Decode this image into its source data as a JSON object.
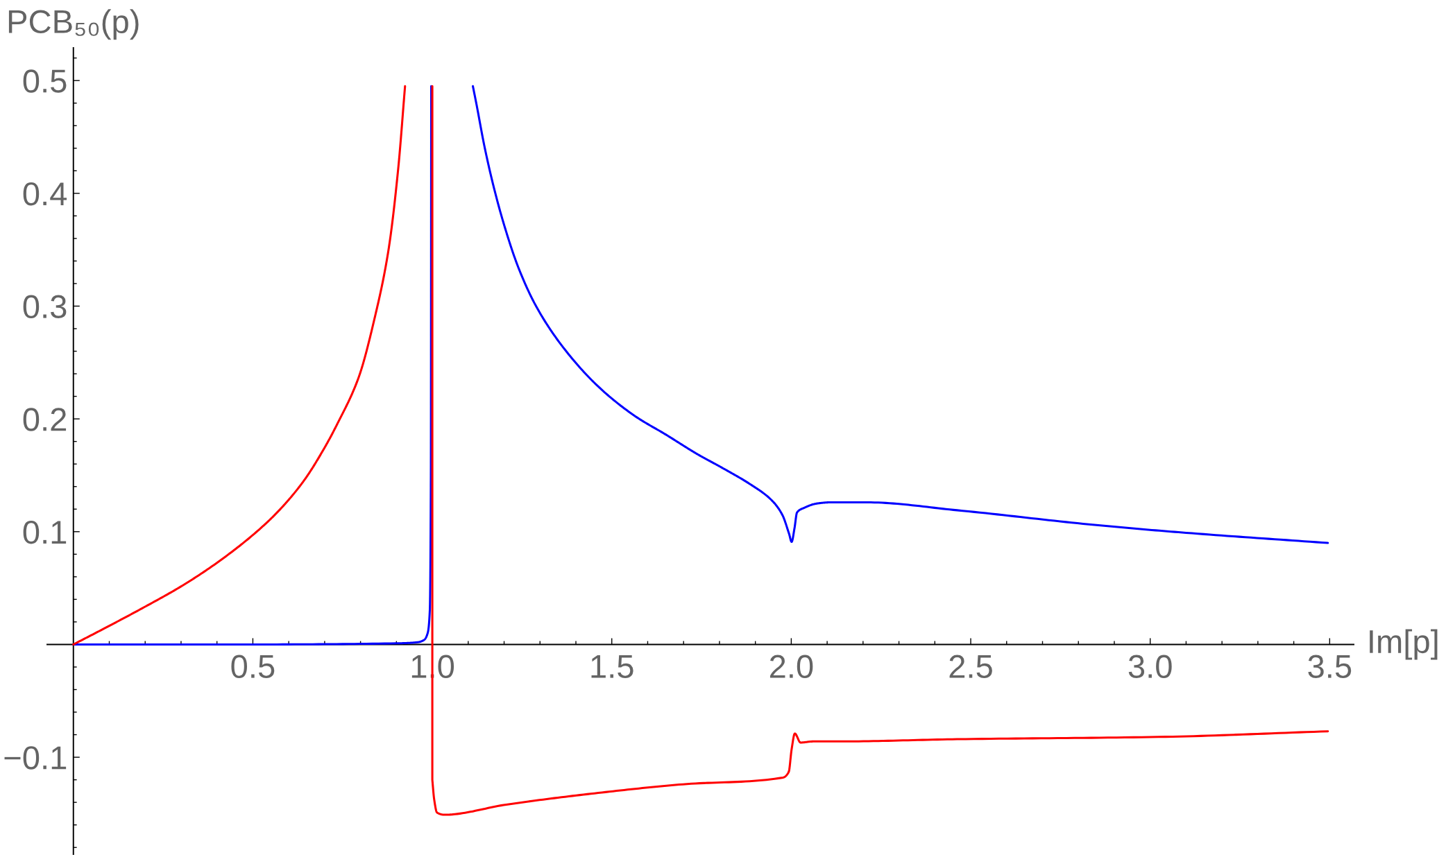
{
  "chart_data": {
    "type": "line",
    "xlabel": "Im[p]",
    "ylabel": "PCB₅₀(p)",
    "xlim": [
      -0.073,
      3.567
    ],
    "ylim": [
      -0.186,
      0.529
    ],
    "xticks": [
      0.5,
      {
        "value": 1,
        "label": "1.0"
      },
      1.5,
      {
        "value": 2,
        "label": "2.0"
      },
      2.5,
      {
        "value": 3,
        "label": "3.0"
      },
      3.5,
      {
        "value": 0.1,
        "label": null
      },
      {
        "value": 0.2,
        "label": null
      },
      {
        "value": 0.3,
        "label": null
      },
      {
        "value": 0.4,
        "label": null
      },
      {
        "value": 0.6,
        "label": null
      },
      {
        "value": 0.7,
        "label": null
      },
      {
        "value": 0.8,
        "label": null
      },
      {
        "value": 0.9,
        "label": null
      },
      {
        "value": 1.1,
        "label": null
      },
      {
        "value": 1.2,
        "label": null
      },
      {
        "value": 1.3,
        "label": null
      },
      {
        "value": 1.4,
        "label": null
      },
      {
        "value": 1.6,
        "label": null
      },
      {
        "value": 1.7,
        "label": null
      },
      {
        "value": 1.8,
        "label": null
      },
      {
        "value": 1.9,
        "label": null
      },
      {
        "value": 2.1,
        "label": null
      },
      {
        "value": 2.2,
        "label": null
      },
      {
        "value": 2.3,
        "label": null
      },
      {
        "value": 2.4,
        "label": null
      },
      {
        "value": 2.6,
        "label": null
      },
      {
        "value": 2.7,
        "label": null
      },
      {
        "value": 2.8,
        "label": null
      },
      {
        "value": 2.9,
        "label": null
      },
      {
        "value": 3.1,
        "label": null
      },
      {
        "value": 3.2,
        "label": null
      },
      {
        "value": 3.3,
        "label": null
      },
      {
        "value": 3.4,
        "label": null
      }
    ],
    "yticks": [
      {
        "value": -0.1,
        "label": "−0.1"
      },
      0.1,
      0.2,
      0.3,
      0.4,
      0.5,
      {
        "value": -0.18,
        "label": null
      },
      {
        "value": -0.16,
        "label": null
      },
      {
        "value": -0.14,
        "label": null
      },
      {
        "value": -0.12,
        "label": null
      },
      {
        "value": -0.08,
        "label": null
      },
      {
        "value": -0.06,
        "label": null
      },
      {
        "value": -0.04,
        "label": null
      },
      {
        "value": -0.02,
        "label": null
      },
      {
        "value": 0.02,
        "label": null
      },
      {
        "value": 0.04,
        "label": null
      },
      {
        "value": 0.06,
        "label": null
      },
      {
        "value": 0.08,
        "label": null
      },
      {
        "value": 0.12,
        "label": null
      },
      {
        "value": 0.14,
        "label": null
      },
      {
        "value": 0.16,
        "label": null
      },
      {
        "value": 0.18,
        "label": null
      },
      {
        "value": 0.22,
        "label": null
      },
      {
        "value": 0.24,
        "label": null
      },
      {
        "value": 0.26,
        "label": null
      },
      {
        "value": 0.28,
        "label": null
      },
      {
        "value": 0.32,
        "label": null
      },
      {
        "value": 0.34,
        "label": null
      },
      {
        "value": 0.36,
        "label": null
      },
      {
        "value": 0.38,
        "label": null
      },
      {
        "value": 0.42,
        "label": null
      },
      {
        "value": 0.44,
        "label": null
      },
      {
        "value": 0.46,
        "label": null
      },
      {
        "value": 0.48,
        "label": null
      },
      {
        "value": 0.52,
        "label": null
      }
    ],
    "grid": false,
    "series": [
      {
        "color": "#0000ff",
        "x": [
          0,
          0.5,
          0.9,
          0.96,
          0.977,
          0.987,
          0.993,
          0.996,
          0.997,
          1.05,
          1.113,
          1.123,
          1.145,
          1.17,
          1.2,
          1.24,
          1.289,
          1.368,
          1.468,
          1.567,
          1.651,
          1.737,
          1.811,
          1.886,
          1.945,
          1.975,
          1.994,
          2.001,
          2.009,
          2.016,
          2.035,
          2.072,
          2.109,
          2.211,
          2.462,
          2.845,
          3.1,
          3.495
        ],
        "values": [
          0,
          0,
          0.001,
          0.002,
          0.004,
          0.01,
          0.03,
          0.15,
          0.495,
          null,
          0.495,
          0.479,
          0.442,
          0.407,
          0.372,
          0.334,
          0.3,
          0.262,
          0.227,
          0.202,
          0.186,
          0.169,
          0.156,
          0.142,
          0.128,
          0.115,
          0.098,
          0.091,
          0.103,
          0.117,
          0.121,
          0.125,
          0.126,
          0.126,
          0.119,
          0.106,
          0.099,
          0.09
        ]
      },
      {
        "color": "#ff0000",
        "x": [
          0,
          0.085,
          0.197,
          0.308,
          0.42,
          0.532,
          0.588,
          0.644,
          0.699,
          0.736,
          0.795,
          0.839,
          0.878,
          0.905,
          0.924,
          0.96,
          1.0,
          1.0,
          1.005,
          1.013,
          1.034,
          1.206,
          1.452,
          1.698,
          1.977,
          1.993,
          2.001,
          2.01,
          2.026,
          2.06,
          2.133,
          2.462,
          3.023,
          3.495
        ],
        "values": [
          0,
          0.014,
          0.033,
          0.053,
          0.077,
          0.106,
          0.124,
          0.146,
          0.174,
          0.196,
          0.237,
          0.289,
          0.35,
          0.422,
          0.495,
          null,
          0.495,
          -0.12,
          -0.137,
          -0.149,
          -0.151,
          -0.142,
          -0.132,
          -0.124,
          -0.118,
          -0.113,
          -0.093,
          -0.079,
          -0.087,
          -0.086,
          -0.086,
          -0.084,
          -0.082,
          -0.077
        ]
      }
    ]
  }
}
